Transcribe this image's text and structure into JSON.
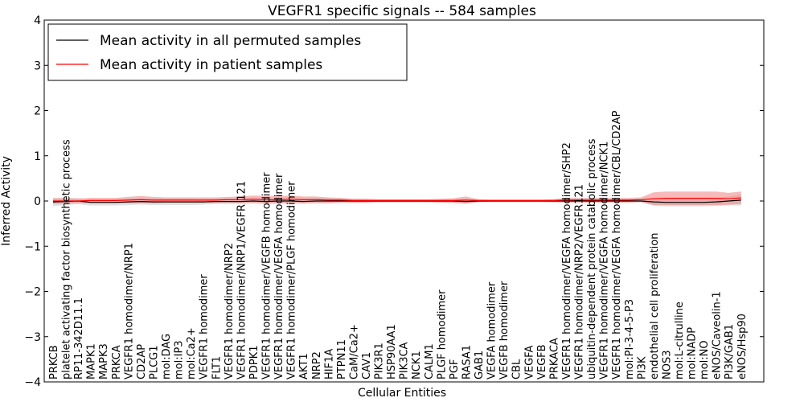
{
  "chart_data": {
    "type": "line",
    "title": "VEGFR1 specific signals -- 584 samples",
    "xlabel": "Cellular Entities",
    "ylabel": "Inferred Activity",
    "ylim": [
      -4,
      4
    ],
    "yticks": [
      -4,
      -3,
      -2,
      -1,
      0,
      1,
      2,
      3,
      4
    ],
    "grid": false,
    "legend_position": "top-left",
    "colors": {
      "permuted": "#000000",
      "patient": "#ff0000",
      "patient_band": "#f08080",
      "permuted_band": "#c8c8c8"
    },
    "categories": [
      "PRKCB",
      "platelet activating factor biosynthetic process",
      "RP11-342D11.1",
      "MAPK1",
      "MAPK3",
      "PRKCA",
      "VEGFR1 homodimer/NRP1",
      "CD2AP",
      "PLCG1",
      "mol:DAG",
      "mol:IP3",
      "mol:Ca2+",
      "VEGFR1 homodimer",
      "FLT1",
      "VEGFR1 homodimer/NRP2",
      "VEGFR1 homodimer/NRP1/VEGFR 121",
      "PDPK1",
      "VEGFR1 homodimer/VEGFB homodimer",
      "VEGFR1 homodimer/VEGFA homodimer",
      "VEGFR1 homodimer/PLGF homodimer",
      "AKT1",
      "NRP2",
      "HIF1A",
      "PTPN11",
      "CaM/Ca2+",
      "CAV1",
      "PIK3R1",
      "HSP90AA1",
      "PIK3CA",
      "NCK1",
      "CALM1",
      "PLGF homodimer",
      "PGF",
      "RASA1",
      "GAB1",
      "VEGFA homodimer",
      "VEGFB homodimer",
      "CBL",
      "VEGFA",
      "VEGFB",
      "PRKACA",
      "VEGFR1 homodimer/VEGFA homodimer/SHP2",
      "VEGFR1 homodimer/NRP2/VEGFR121",
      "ubiquitin-dependent protein catabolic process",
      "VEGFR1 homodimer/VEGFA homodimer/NCK1",
      "VEGFR1 homodimer/VEGFA homodimer/CBL/CD2AP",
      "mol:PI-3-4-5-P3",
      "PI3K",
      "endothelial cell proliferation",
      "NOS3",
      "mol:L-citrulline",
      "mol:NADP",
      "mol:NO",
      "eNOS/Caveolin-1",
      "PI3K/GAB1",
      "eNOS/Hsp90"
    ],
    "series": [
      {
        "name": "Mean activity in all permuted samples",
        "values": [
          -0.02,
          -0.01,
          0.0,
          -0.03,
          -0.03,
          -0.03,
          -0.02,
          -0.01,
          -0.02,
          -0.02,
          -0.02,
          -0.02,
          -0.02,
          -0.01,
          -0.01,
          -0.01,
          0.0,
          -0.01,
          0.0,
          0.0,
          -0.01,
          0.0,
          0.0,
          0.0,
          0.0,
          0.0,
          0.0,
          0.0,
          0.0,
          0.0,
          0.0,
          0.0,
          0.0,
          -0.01,
          0.0,
          0.0,
          0.0,
          0.0,
          0.0,
          0.0,
          0.0,
          0.0,
          0.0,
          0.0,
          0.0,
          0.0,
          0.0,
          0.0,
          -0.02,
          -0.03,
          -0.03,
          -0.03,
          -0.03,
          -0.02,
          0.0,
          0.02
        ],
        "band": [
          0.09,
          0.08,
          0.07,
          0.07,
          0.07,
          0.07,
          0.07,
          0.07,
          0.07,
          0.07,
          0.07,
          0.07,
          0.06,
          0.06,
          0.06,
          0.06,
          0.06,
          0.06,
          0.06,
          0.06,
          0.06,
          0.06,
          0.06,
          0.05,
          0.05,
          0.05,
          0.04,
          0.04,
          0.04,
          0.04,
          0.04,
          0.04,
          0.04,
          0.05,
          0.03,
          0.03,
          0.03,
          0.03,
          0.03,
          0.03,
          0.04,
          0.04,
          0.04,
          0.04,
          0.04,
          0.04,
          0.04,
          0.04,
          0.08,
          0.09,
          0.09,
          0.09,
          0.09,
          0.09,
          0.1,
          0.12
        ]
      },
      {
        "name": "Mean activity in patient samples",
        "values": [
          0.0,
          0.0,
          0.0,
          0.01,
          0.01,
          0.01,
          0.02,
          0.03,
          0.02,
          0.02,
          0.02,
          0.02,
          0.02,
          0.02,
          0.03,
          0.03,
          0.04,
          0.03,
          0.03,
          0.04,
          0.03,
          0.03,
          0.02,
          0.02,
          0.01,
          0.01,
          0.01,
          0.01,
          0.01,
          0.01,
          0.01,
          0.01,
          0.01,
          0.02,
          0.01,
          0.01,
          0.01,
          0.01,
          0.01,
          0.01,
          0.01,
          0.02,
          0.02,
          0.02,
          0.02,
          0.02,
          0.02,
          0.03,
          0.05,
          0.06,
          0.06,
          0.06,
          0.06,
          0.06,
          0.05,
          0.07
        ],
        "band": [
          0.06,
          0.06,
          0.05,
          0.06,
          0.06,
          0.06,
          0.07,
          0.08,
          0.07,
          0.06,
          0.06,
          0.06,
          0.06,
          0.06,
          0.06,
          0.07,
          0.08,
          0.08,
          0.08,
          0.08,
          0.07,
          0.07,
          0.06,
          0.05,
          0.04,
          0.04,
          0.03,
          0.03,
          0.03,
          0.03,
          0.03,
          0.04,
          0.05,
          0.08,
          0.03,
          0.02,
          0.02,
          0.02,
          0.02,
          0.02,
          0.03,
          0.05,
          0.05,
          0.05,
          0.05,
          0.05,
          0.05,
          0.05,
          0.14,
          0.15,
          0.15,
          0.15,
          0.15,
          0.15,
          0.13,
          0.14
        ]
      }
    ]
  }
}
